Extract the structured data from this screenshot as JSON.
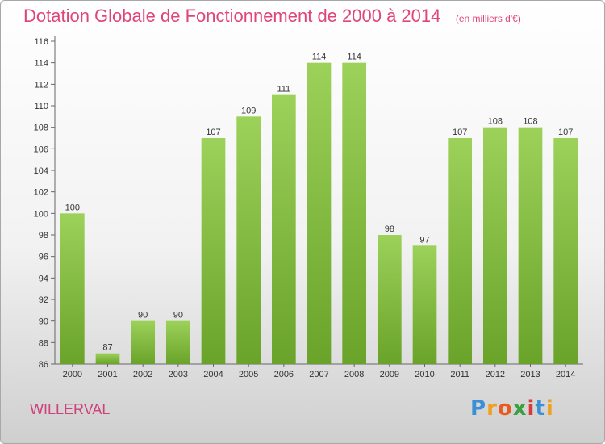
{
  "chart_data": {
    "type": "bar",
    "title": "Dotation Globale de Fonctionnement de 2000 à 2014",
    "unit": "(en milliers d'€)",
    "categories": [
      "2000",
      "2001",
      "2002",
      "2003",
      "2004",
      "2005",
      "2006",
      "2007",
      "2008",
      "2009",
      "2010",
      "2011",
      "2012",
      "2013",
      "2014"
    ],
    "values": [
      100,
      87,
      90,
      90,
      107,
      109,
      111,
      114,
      114,
      98,
      97,
      107,
      108,
      108,
      107
    ],
    "ylim": [
      86,
      116
    ],
    "yticks": [
      86,
      88,
      90,
      92,
      94,
      96,
      98,
      100,
      102,
      104,
      106,
      108,
      110,
      112,
      114,
      116
    ],
    "grid": false,
    "bar_color_top": "#9cd15a",
    "bar_color_bottom": "#6aa32a"
  },
  "footer": {
    "commune": "WILLERVAL",
    "logo_letters": [
      "P",
      "r",
      "o",
      "x",
      "i",
      "t",
      "i"
    ],
    "logo_colors": [
      "#3a8fd6",
      "#f0a020",
      "#e85a20",
      "#3aa040",
      "#d83a3a",
      "#3a8fd6",
      "#f0a020"
    ]
  }
}
